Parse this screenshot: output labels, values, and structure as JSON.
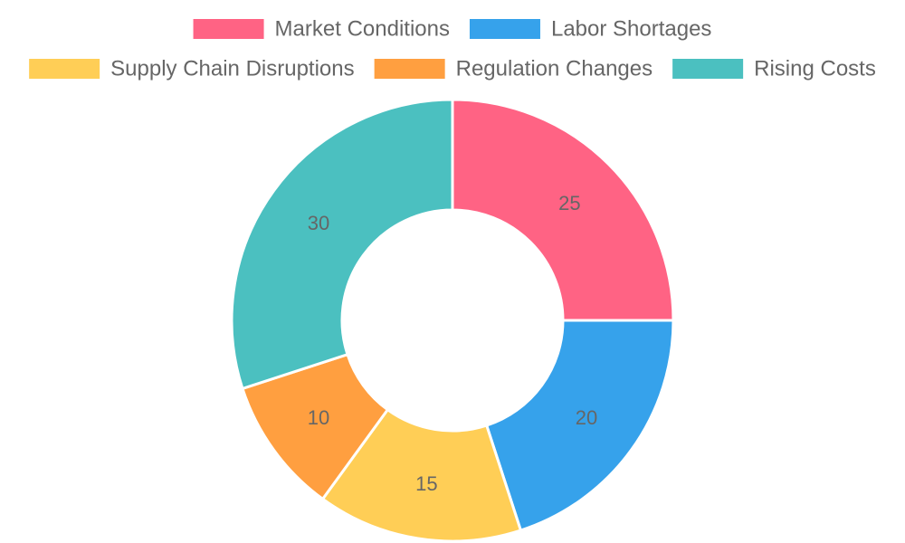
{
  "chart_data": {
    "type": "pie",
    "variant": "doughnut",
    "title": "",
    "legend_position": "top",
    "categories": [
      "Market Conditions",
      "Labor Shortages",
      "Supply Chain Disruptions",
      "Regulation Changes",
      "Rising Costs"
    ],
    "values": [
      25,
      20,
      15,
      10,
      30
    ],
    "colors": [
      "#FF6384",
      "#36A2EB",
      "#FFCE56",
      "#FF9F40",
      "#4BC0C0"
    ],
    "data_labels": [
      "25",
      "20",
      "15",
      "10",
      "30"
    ]
  }
}
